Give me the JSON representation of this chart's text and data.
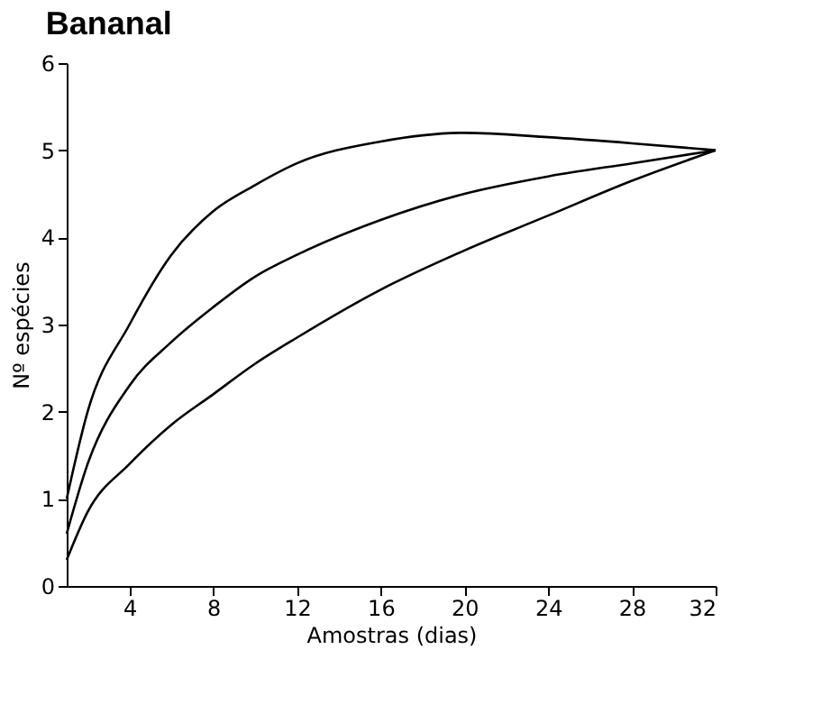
{
  "chart_data": {
    "type": "line",
    "title": "Bananal",
    "xlabel": "Amostras (dias)",
    "ylabel": "Nº espécies",
    "x": [
      1,
      2,
      4,
      6,
      8,
      10,
      12,
      16,
      20,
      24,
      28,
      32
    ],
    "series": [
      {
        "color": "#000000",
        "values": [
          1.0,
          2.0,
          3.0,
          3.8,
          4.3,
          4.6,
          4.85,
          5.1,
          5.2,
          5.15,
          5.08,
          5.0
        ]
      },
      {
        "color": "#000000",
        "values": [
          0.6,
          1.4,
          2.3,
          2.8,
          3.2,
          3.55,
          3.8,
          4.2,
          4.5,
          4.7,
          4.85,
          5.0
        ]
      },
      {
        "color": "#000000",
        "values": [
          0.3,
          0.85,
          1.4,
          1.85,
          2.2,
          2.55,
          2.85,
          3.4,
          3.85,
          4.25,
          4.65,
          5.0
        ]
      }
    ],
    "xlim": [
      1,
      32
    ],
    "xticks": [
      4,
      8,
      12,
      16,
      20,
      24,
      28,
      32
    ],
    "ylim": [
      0,
      6
    ],
    "yticks": [
      0,
      1,
      2,
      3,
      4,
      5,
      6
    ],
    "grid": false,
    "legend": false,
    "marker": "none",
    "line_style": "solid"
  }
}
